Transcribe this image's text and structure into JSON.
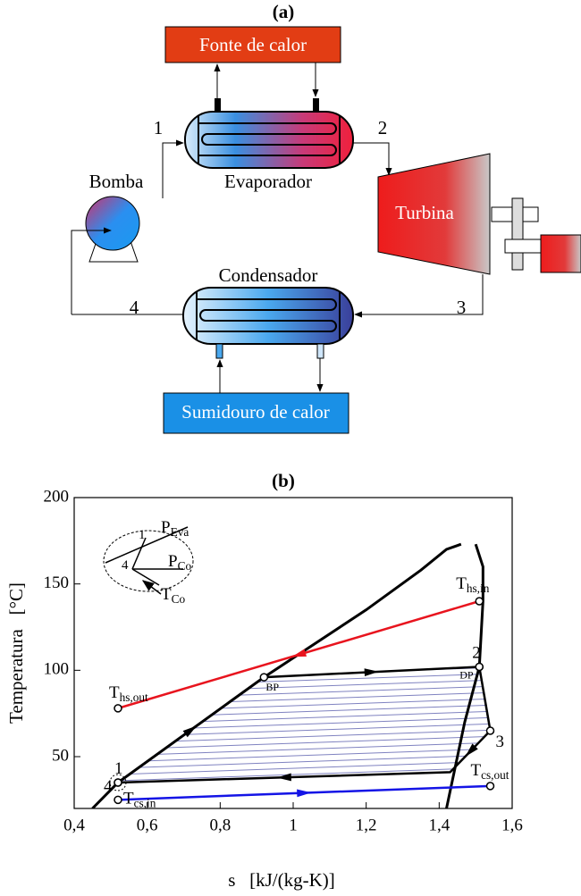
{
  "diagram": {
    "title": "(a)",
    "heat_source": "Fonte de calor",
    "evaporator": "Evaporador",
    "turbine": "Turbina",
    "pump": "Bomba",
    "condenser": "Condensador",
    "heat_sink": "Sumidouro de calor",
    "states": [
      "1",
      "2",
      "3",
      "4"
    ]
  },
  "chart_data": {
    "type": "line",
    "title": "(b)",
    "x_label": "s   [kJ/(kg-K)]",
    "y_label": "Temperatura   [°C]",
    "xlim": [
      0.4,
      1.6
    ],
    "ylim": [
      20,
      200
    ],
    "xticks": [
      {
        "value": 0.4,
        "label": "0,4"
      },
      {
        "value": 0.6,
        "label": "0,6"
      },
      {
        "value": 0.8,
        "label": "0,8"
      },
      1,
      {
        "value": 1.2,
        "label": "1,2"
      },
      {
        "value": 1.4,
        "label": "1,4"
      },
      {
        "value": 1.6,
        "label": "1,6"
      }
    ],
    "yticks": [
      50,
      100,
      150,
      200
    ],
    "series": [
      {
        "color": "#000000",
        "x": [
          0.45,
          0.52,
          0.92,
          1.2,
          1.35,
          1.42,
          1.46,
          null,
          1.5,
          1.52,
          1.52,
          1.51,
          1.47,
          1.42
        ],
        "values": [
          20,
          35,
          96,
          135,
          158,
          170,
          173,
          null,
          173,
          160,
          140,
          102,
          70,
          20
        ]
      },
      {
        "color": "#000000",
        "x": [
          0.52,
          0.92,
          1.51,
          1.54,
          1.43,
          0.52
        ],
        "values": [
          35,
          96,
          102,
          65,
          41,
          35
        ]
      },
      {
        "color": "#e8141e",
        "x": [
          1.51,
          0.52
        ],
        "values": [
          140,
          78
        ]
      },
      {
        "color": "#1414e6",
        "x": [
          0.52,
          1.54
        ],
        "values": [
          25,
          33
        ]
      }
    ],
    "annotations": [
      {
        "x": 0.52,
        "y": 35,
        "text": "1"
      },
      {
        "x": 0.52,
        "y": 35,
        "text": "4"
      },
      {
        "x": 1.51,
        "y": 102,
        "text": "2"
      },
      {
        "x": 1.51,
        "y": 102,
        "text": "DP"
      },
      {
        "x": 1.54,
        "y": 65,
        "text": "3"
      },
      {
        "x": 0.92,
        "y": 96,
        "text": "BP"
      },
      {
        "x": 1.51,
        "y": 140,
        "text": "T",
        "sub": "hs,in"
      },
      {
        "x": 0.52,
        "y": 78,
        "text": "T",
        "sub": "hs,out"
      },
      {
        "x": 1.54,
        "y": 33,
        "text": "T",
        "sub": "cs,out"
      },
      {
        "x": 0.52,
        "y": 25,
        "text": "T",
        "sub": "cs,in"
      }
    ],
    "inset": [
      {
        "text": "P",
        "sub": "Eva"
      },
      {
        "text": "P",
        "sub": "Co"
      },
      {
        "text": "T",
        "sub": "Co"
      },
      {
        "text": "1"
      },
      {
        "text": "4"
      }
    ]
  }
}
